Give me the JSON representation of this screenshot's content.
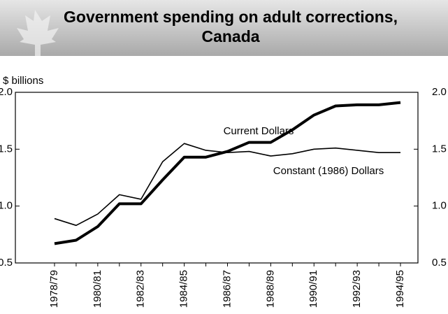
{
  "chart_data": {
    "type": "line",
    "title": "Government spending on adult corrections, Canada",
    "ylabel": "$ billions",
    "categories": [
      "1978/79",
      null,
      "1980/81",
      null,
      "1982/83",
      null,
      "1984/85",
      null,
      "1986/87",
      null,
      "1988/89",
      null,
      "1990/91",
      null,
      "1992/93",
      null,
      "1994/95"
    ],
    "series": [
      {
        "name": "Current Dollars",
        "color": "#000000",
        "width": 4,
        "values": [
          0.67,
          0.7,
          0.82,
          1.02,
          1.02,
          1.23,
          1.43,
          1.43,
          1.48,
          1.56,
          1.56,
          1.67,
          1.8,
          1.88,
          1.89,
          1.89,
          1.91
        ]
      },
      {
        "name": "Constant (1986) Dollars",
        "color": "#000000",
        "width": 1.6,
        "values": [
          0.89,
          0.83,
          0.93,
          1.1,
          1.06,
          1.39,
          1.55,
          1.49,
          1.47,
          1.48,
          1.44,
          1.46,
          1.5,
          1.51,
          1.49,
          1.47,
          1.47
        ]
      }
    ],
    "ylim": [
      0.5,
      2.0
    ],
    "yticks": [
      {
        "value": 2,
        "label": "2.0"
      },
      {
        "value": 1.5,
        "label": "1.5"
      },
      {
        "value": 1,
        "label": "1.0"
      },
      {
        "value": 0.5,
        "label": "0.5"
      }
    ],
    "y2lim": [
      0.5,
      2.0
    ],
    "y2ticks": [
      {
        "value": 2,
        "label": "2.0"
      },
      {
        "value": 1.5,
        "label": "1.5"
      },
      {
        "value": 1,
        "label": "1.0"
      },
      {
        "value": 0.5,
        "label": "0.5"
      }
    ],
    "grid": false
  }
}
